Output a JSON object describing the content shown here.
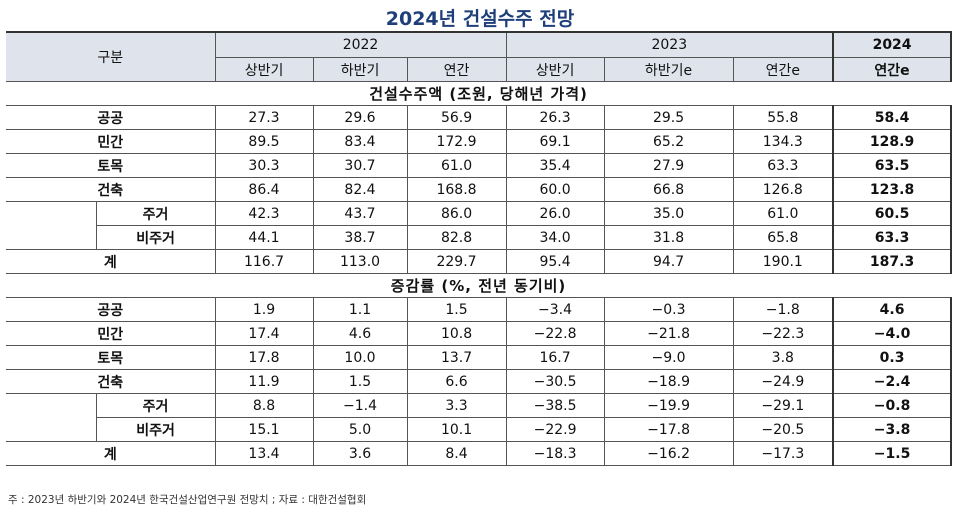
{
  "title": "2024년 건설수주 전망",
  "header": {
    "category": "구분",
    "years": [
      "2022",
      "2023",
      "2024"
    ],
    "sub": [
      "상반기",
      "하반기",
      "연간",
      "상반기",
      "하반기e",
      "연간e",
      "연간e"
    ]
  },
  "section1": {
    "title": "건설수주액 (조원, 당해년 가격)",
    "rows": [
      {
        "label": "공공",
        "values": [
          "27.3",
          "29.6",
          "56.9",
          "26.3",
          "29.5",
          "55.8",
          "58.4"
        ]
      },
      {
        "label": "민간",
        "values": [
          "89.5",
          "83.4",
          "172.9",
          "69.1",
          "65.2",
          "134.3",
          "128.9"
        ]
      },
      {
        "label": "토목",
        "values": [
          "30.3",
          "30.7",
          "61.0",
          "35.4",
          "27.9",
          "63.3",
          "63.5"
        ]
      },
      {
        "label": "건축",
        "values": [
          "86.4",
          "82.4",
          "168.8",
          "60.0",
          "66.8",
          "126.8",
          "123.8"
        ]
      },
      {
        "label": "주거",
        "values": [
          "42.3",
          "43.7",
          "86.0",
          "26.0",
          "35.0",
          "61.0",
          "60.5"
        ]
      },
      {
        "label": "비주거",
        "values": [
          "44.1",
          "38.7",
          "82.8",
          "34.0",
          "31.8",
          "65.8",
          "63.3"
        ]
      },
      {
        "label": "계",
        "values": [
          "116.7",
          "113.0",
          "229.7",
          "95.4",
          "94.7",
          "190.1",
          "187.3"
        ]
      }
    ]
  },
  "section2": {
    "title": "증감률 (%, 전년 동기비)",
    "rows": [
      {
        "label": "공공",
        "values": [
          "1.9",
          "1.1",
          "1.5",
          "−3.4",
          "−0.3",
          "−1.8",
          "4.6"
        ]
      },
      {
        "label": "민간",
        "values": [
          "17.4",
          "4.6",
          "10.8",
          "−22.8",
          "−21.8",
          "−22.3",
          "−4.0"
        ]
      },
      {
        "label": "토목",
        "values": [
          "17.8",
          "10.0",
          "13.7",
          "16.7",
          "−9.0",
          "3.8",
          "0.3"
        ]
      },
      {
        "label": "건축",
        "values": [
          "11.9",
          "1.5",
          "6.6",
          "−30.5",
          "−18.9",
          "−24.9",
          "−2.4"
        ]
      },
      {
        "label": "주거",
        "values": [
          "8.8",
          "−1.4",
          "3.3",
          "−38.5",
          "−19.9",
          "−29.1",
          "−0.8"
        ]
      },
      {
        "label": "비주거",
        "values": [
          "15.1",
          "5.0",
          "10.1",
          "−22.9",
          "−17.8",
          "−20.5",
          "−3.8"
        ]
      },
      {
        "label": "계",
        "values": [
          "13.4",
          "3.6",
          "8.4",
          "−18.3",
          "−16.2",
          "−17.3",
          "−1.5"
        ]
      }
    ]
  },
  "footnote": "주 : 2023년 하반기와 2024년 한국건설산업연구원 전망치 ; 자료 : 대한건설협회"
}
